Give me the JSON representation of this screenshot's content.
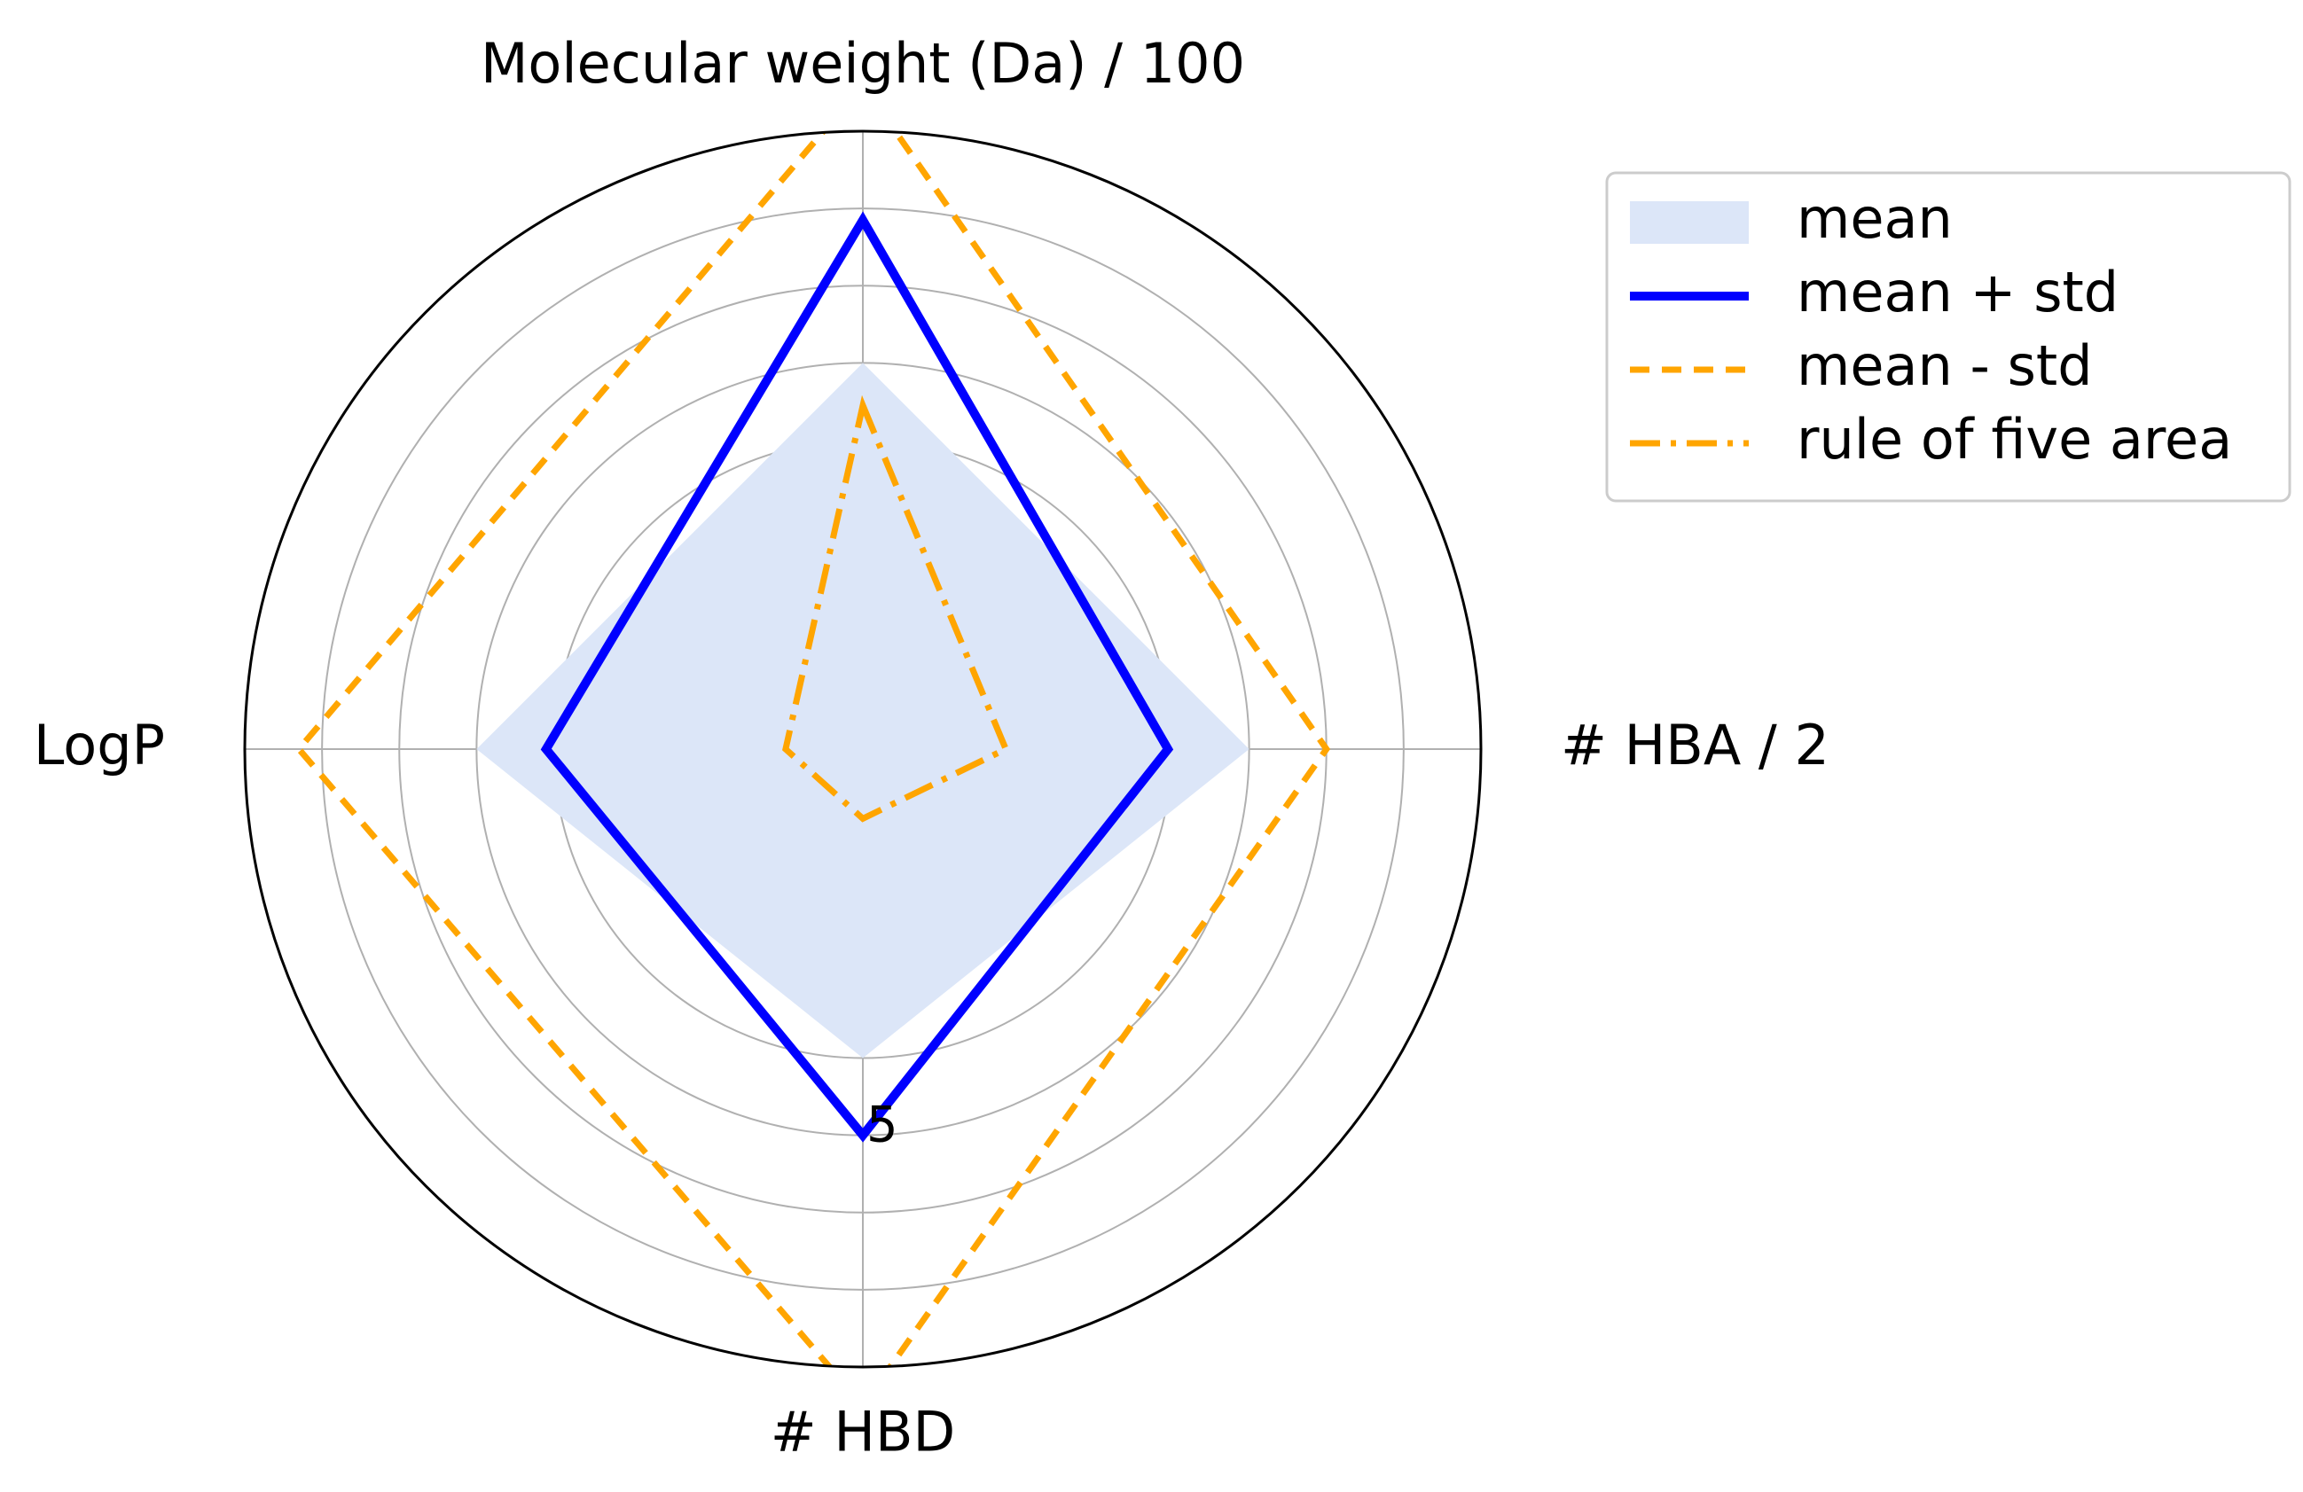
{
  "chart_data": {
    "type": "radar",
    "axes": [
      "Molecular weight (Da) / 100",
      "# HBA / 2",
      "# HBD",
      "LogP"
    ],
    "rmax": 8,
    "r_gridlines": [
      1,
      2,
      3,
      4,
      5,
      6,
      7,
      8
    ],
    "r_tick_labels": [
      {
        "value": 5,
        "label": "5"
      }
    ],
    "grid": true,
    "series": [
      {
        "name": "mean",
        "style": "fill",
        "color": "#dce6f8",
        "values": [
          5.0,
          5.0,
          4.0,
          5.0
        ]
      },
      {
        "name": "mean + std",
        "style": "solid",
        "color": "#0000ff",
        "values": [
          6.85,
          3.95,
          5.0,
          4.1
        ]
      },
      {
        "name": "mean - std",
        "style": "dashed",
        "color": "#ffa500",
        "values": [
          8.6,
          6.0,
          8.5,
          7.3
        ]
      },
      {
        "name": "rule of five area",
        "style": "dashdot",
        "color": "#ffa500",
        "values": [
          4.45,
          1.85,
          0.9,
          1.0
        ]
      }
    ],
    "legend_position": "upper-right-outside"
  }
}
